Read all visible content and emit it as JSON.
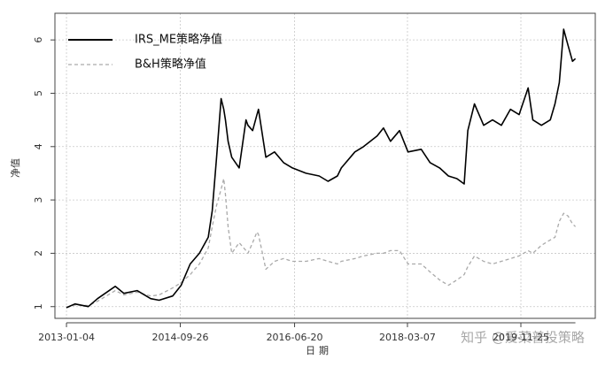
{
  "chart_data": {
    "type": "line",
    "x_label": "日期",
    "y_label": "净值",
    "watermark": "知乎 @爱菜普投策略",
    "legend": "top-left",
    "grid": true,
    "x": [
      "2013-01-04",
      "2013-02-20",
      "2013-05-05",
      "2013-06-25",
      "2013-10-01",
      "2013-11-18",
      "2014-01-30",
      "2014-04-15",
      "2014-06-01",
      "2014-08-15",
      "2014-10-01",
      "2014-11-20",
      "2015-01-10",
      "2015-02-28",
      "2015-03-22",
      "2015-04-15",
      "2015-05-10",
      "2015-05-25",
      "2015-06-03",
      "2015-06-18",
      "2015-07-08",
      "2015-08-18",
      "2015-09-25",
      "2015-10-06",
      "2015-11-01",
      "2015-11-25",
      "2015-12-03",
      "2016-01-13",
      "2016-03-01",
      "2016-04-20",
      "2016-06-08",
      "2016-08-22",
      "2016-11-03",
      "2016-12-22",
      "2017-02-12",
      "2017-03-06",
      "2017-05-20",
      "2017-07-07",
      "2017-09-20",
      "2017-10-25",
      "2017-12-03",
      "2018-01-22",
      "2018-03-10",
      "2018-05-22",
      "2018-07-10",
      "2018-09-01",
      "2018-10-20",
      "2018-12-06",
      "2019-01-15",
      "2019-02-04",
      "2019-03-13",
      "2019-05-03",
      "2019-06-21",
      "2019-08-09",
      "2019-09-28",
      "2019-11-15",
      "2020-01-04",
      "2020-01-30",
      "2020-03-18",
      "2020-05-06",
      "2020-06-01",
      "2020-06-25",
      "2020-07-19",
      "2020-08-12",
      "2020-09-06",
      "2020-09-22"
    ],
    "series": [
      {
        "name": "IRS_ME策略净值",
        "color": "#000000",
        "dash": false,
        "values": [
          0.98,
          1.05,
          1.0,
          1.15,
          1.38,
          1.25,
          1.3,
          1.15,
          1.12,
          1.2,
          1.4,
          1.8,
          2.0,
          2.3,
          2.8,
          3.8,
          4.9,
          4.7,
          4.5,
          4.1,
          3.8,
          3.6,
          4.5,
          4.4,
          4.3,
          4.6,
          4.7,
          3.8,
          3.9,
          3.7,
          3.6,
          3.5,
          3.45,
          3.35,
          3.45,
          3.6,
          3.9,
          4.0,
          4.2,
          4.35,
          4.1,
          4.3,
          3.9,
          3.95,
          3.7,
          3.6,
          3.45,
          3.4,
          3.3,
          4.3,
          4.8,
          4.4,
          4.5,
          4.4,
          4.7,
          4.6,
          5.1,
          4.5,
          4.4,
          4.5,
          4.8,
          5.2,
          6.2,
          5.9,
          5.6,
          5.65
        ]
      },
      {
        "name": "B&H策略净值",
        "color": "#aaaaaa",
        "dash": true,
        "values": [
          0.98,
          1.03,
          1.02,
          1.1,
          1.3,
          1.22,
          1.27,
          1.2,
          1.22,
          1.35,
          1.45,
          1.6,
          1.8,
          2.1,
          2.5,
          2.9,
          3.2,
          3.4,
          3.1,
          2.5,
          2.0,
          2.2,
          2.05,
          2.0,
          2.2,
          2.4,
          2.35,
          1.7,
          1.85,
          1.9,
          1.85,
          1.85,
          1.9,
          1.85,
          1.8,
          1.85,
          1.9,
          1.95,
          2.0,
          2.0,
          2.05,
          2.05,
          1.8,
          1.8,
          1.65,
          1.5,
          1.4,
          1.5,
          1.6,
          1.75,
          1.95,
          1.85,
          1.8,
          1.85,
          1.9,
          1.95,
          2.05,
          2.0,
          2.15,
          2.25,
          2.3,
          2.6,
          2.75,
          2.7,
          2.55,
          2.5
        ]
      }
    ],
    "xlim": [
      "2012-11-01",
      "2021-01-10"
    ],
    "xticks": [
      "2013-01-04",
      "2014-09-26",
      "2016-06-20",
      "2018-03-07",
      "2019-11-25"
    ],
    "ylim": [
      0.78,
      6.5
    ],
    "yticks": [
      1,
      2,
      3,
      4,
      5,
      6
    ]
  }
}
